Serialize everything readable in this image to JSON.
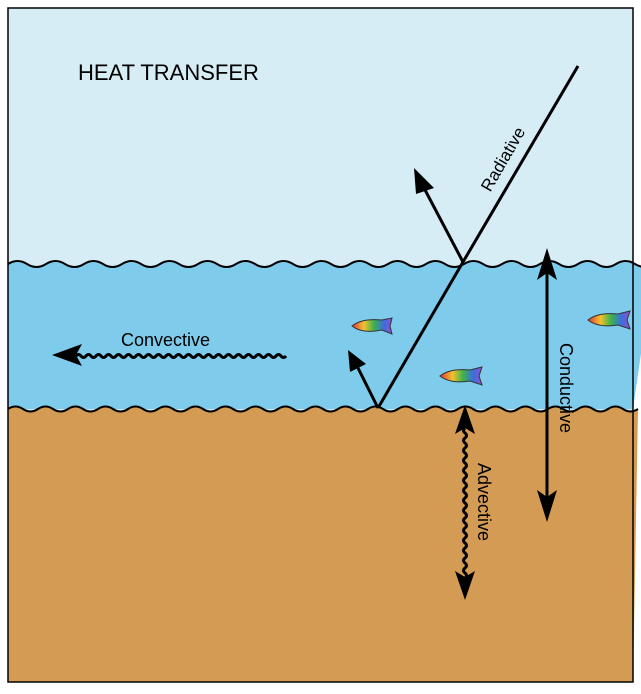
{
  "title": "HEAT TRANSFER",
  "labels": {
    "radiative": "Radiative",
    "convective": "Convective",
    "conductive": "Conductive",
    "advective": "Advective"
  }
}
